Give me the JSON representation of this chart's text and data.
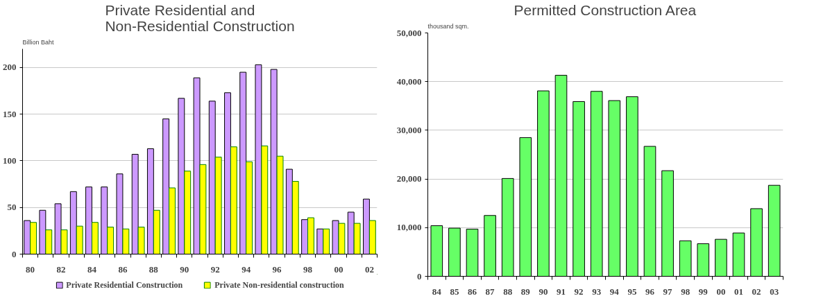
{
  "chart_data": [
    {
      "type": "bar",
      "title": "Private Residential and\nNon-Residential Construction",
      "ylabel": "Billion Baht",
      "categories": [
        "80",
        null,
        "82",
        null,
        "84",
        null,
        "86",
        null,
        "88",
        null,
        "90",
        null,
        "92",
        null,
        "94",
        null,
        "96",
        null,
        "98",
        null,
        "00",
        null,
        "02"
      ],
      "series": [
        {
          "name": "Private Residential Construction",
          "color": "#cc99ff",
          "values": [
            36,
            47,
            54,
            67,
            72,
            72,
            86,
            107,
            113,
            145,
            167,
            189,
            164,
            173,
            195,
            203,
            198,
            91,
            37,
            27,
            36,
            45,
            59
          ]
        },
        {
          "name": "Private Non-residential construction",
          "color": "#ffff00",
          "values": [
            34,
            26,
            26,
            30,
            34,
            29,
            27,
            29,
            47,
            71,
            89,
            96,
            104,
            115,
            99,
            116,
            105,
            78,
            39,
            27,
            33,
            33,
            36
          ]
        }
      ],
      "ylim": [
        0,
        220
      ],
      "yticks": [
        0,
        50,
        100,
        150,
        200
      ],
      "grid": "y",
      "legend": "bottom"
    },
    {
      "type": "bar",
      "title": "Permitted Construction Area",
      "ylabel": "thousand sqm.",
      "categories": [
        "84",
        "85",
        "86",
        "87",
        "88",
        "89",
        "90",
        "91",
        "92",
        "93",
        "94",
        "95",
        "96",
        "97",
        "98",
        "99",
        "00",
        "01",
        "02",
        "03"
      ],
      "values": [
        10400,
        9900,
        9700,
        12500,
        20100,
        28500,
        38100,
        41300,
        35900,
        38000,
        36100,
        36900,
        26700,
        21700,
        7300,
        6700,
        7600,
        8900,
        13900,
        18700
      ],
      "color": "#66ff66",
      "ylim": [
        0,
        50000
      ],
      "yticks": [
        {
          "value": 0,
          "label": "0"
        },
        {
          "value": 10000,
          "label": "10,000"
        },
        {
          "value": 20000,
          "label": "20,000"
        },
        {
          "value": 30000,
          "label": "30,000"
        },
        {
          "value": 40000,
          "label": "40,000"
        },
        {
          "value": 50000,
          "label": "50,000"
        }
      ],
      "grid": "y"
    }
  ]
}
